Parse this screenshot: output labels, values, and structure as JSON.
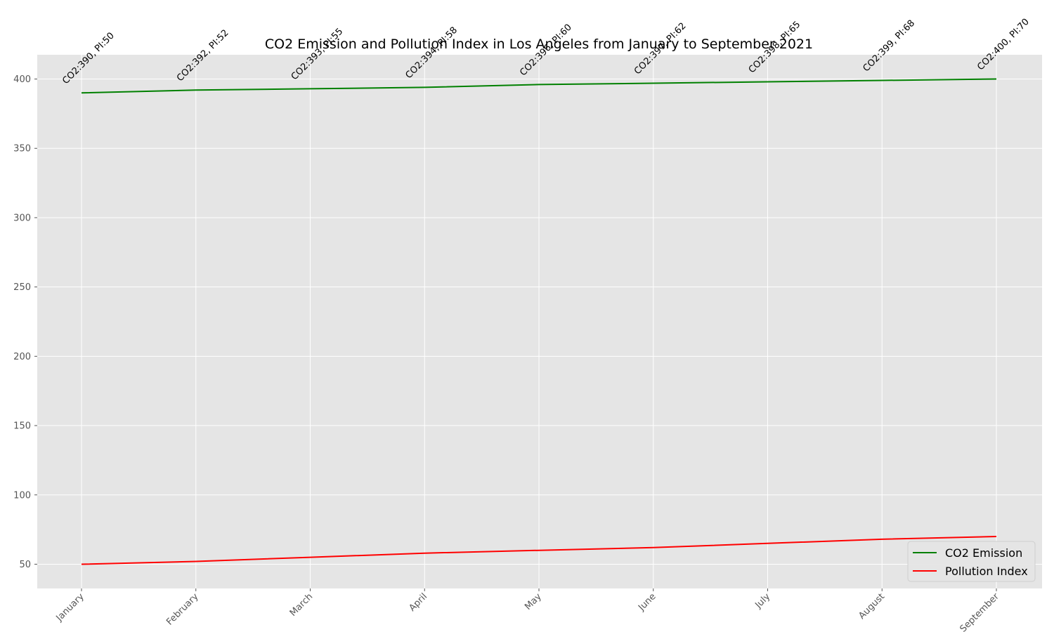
{
  "chart_data": {
    "type": "line",
    "title": "CO2 Emission and Pollution Index in Los Angeles from January to September 2021",
    "xlabel": "",
    "ylabel": "",
    "categories": [
      "January",
      "February",
      "March",
      "April",
      "May",
      "June",
      "July",
      "August",
      "September"
    ],
    "series": [
      {
        "name": "CO2 Emission",
        "color": "#008000",
        "values": [
          390,
          392,
          393,
          394,
          396,
          397,
          398,
          399,
          400
        ]
      },
      {
        "name": "Pollution Index",
        "color": "#ff0000",
        "values": [
          50,
          52,
          55,
          58,
          60,
          62,
          65,
          68,
          70
        ]
      }
    ],
    "annotations": [
      "CO2:390, PI:50",
      "CO2:392, PI:52",
      "CO2:393, PI:55",
      "CO2:394, PI:58",
      "CO2:396, PI:60",
      "CO2:397, PI:62",
      "CO2:398, PI:65",
      "CO2:399, PI:68",
      "CO2:400, PI:70"
    ],
    "yticks": [
      50,
      100,
      150,
      200,
      250,
      300,
      350,
      400
    ],
    "ylim": [
      32.5,
      417.5
    ],
    "grid": true,
    "legend_position": "lower-right",
    "background_color": "#e5e5e5"
  }
}
